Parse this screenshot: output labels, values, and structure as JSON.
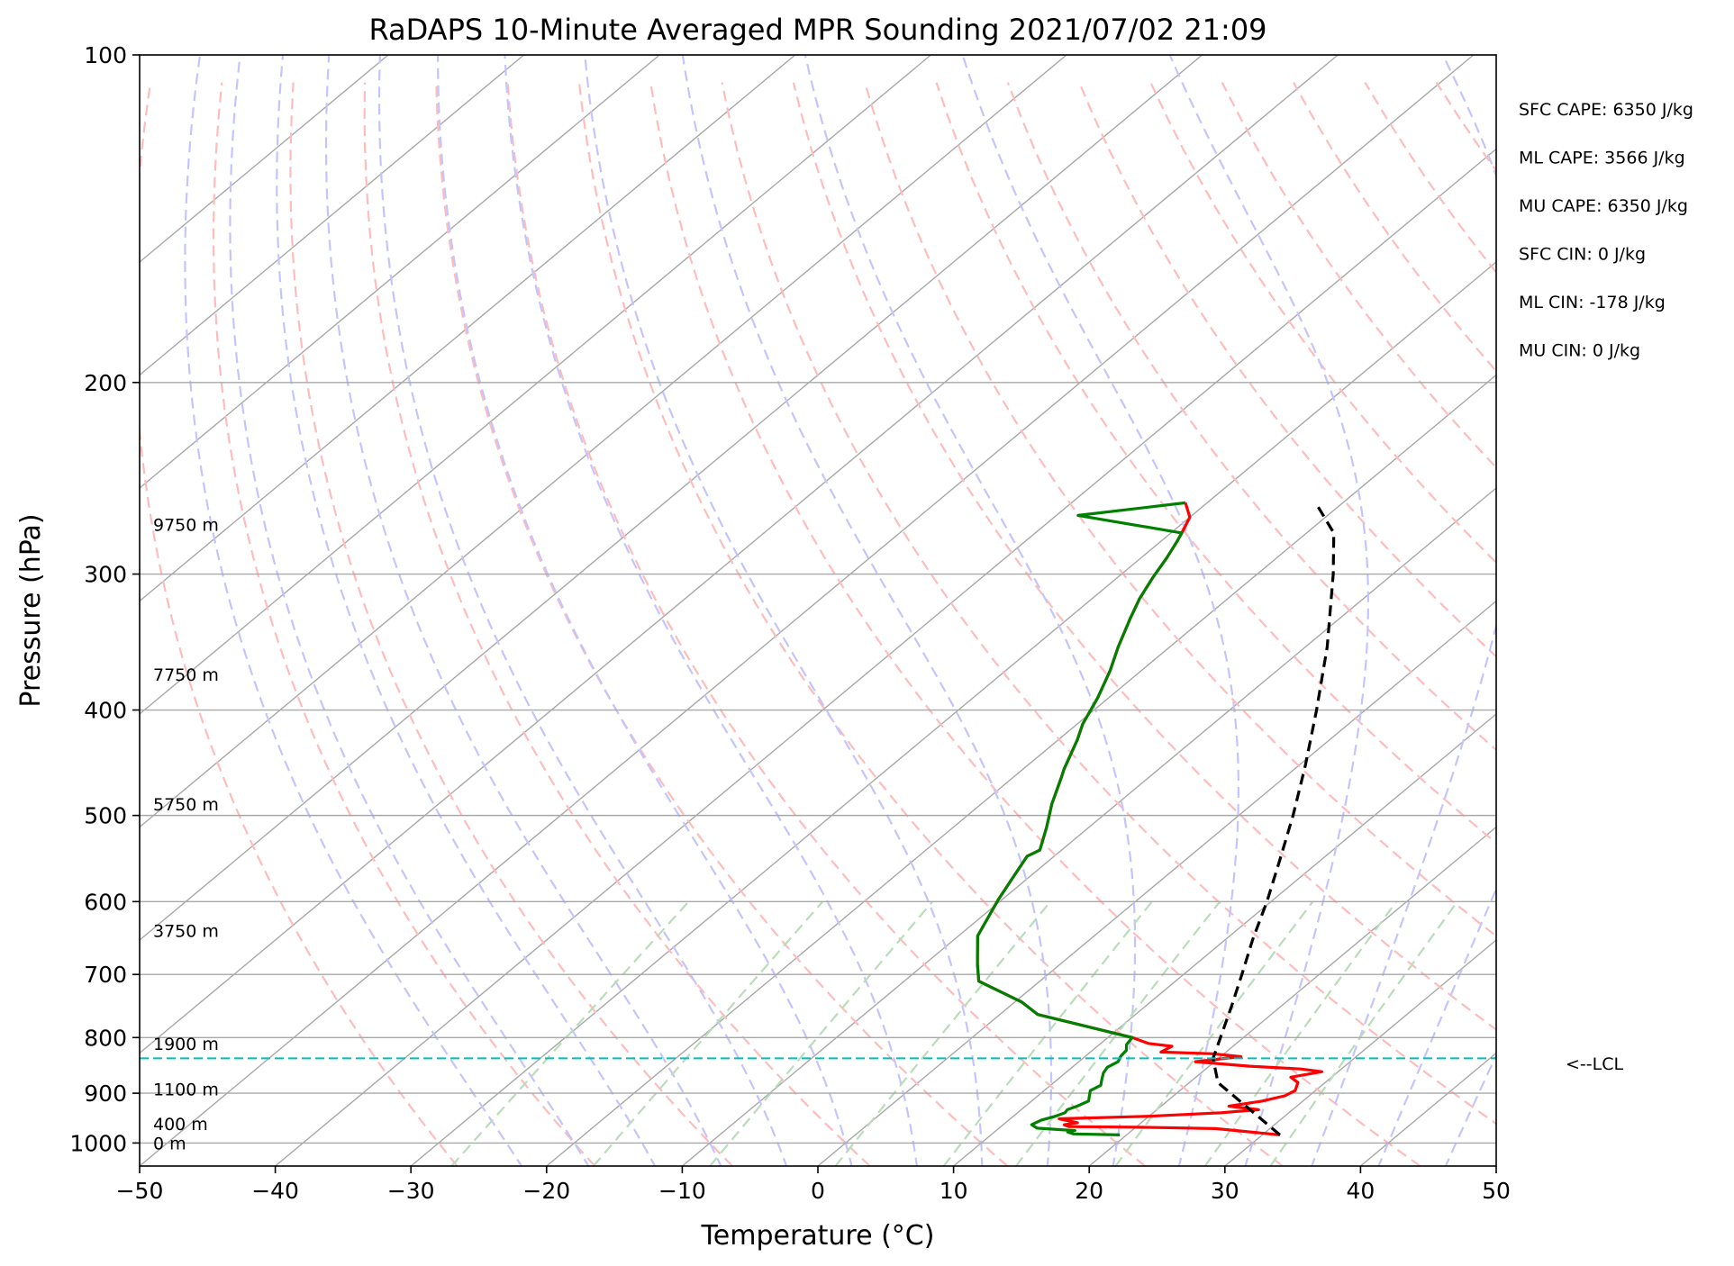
{
  "chart_data": {
    "type": "skew-t",
    "title": "RaDAPS 10-Minute Averaged MPR Sounding 2021/07/02 21:09",
    "xlabel": "Temperature (°C)",
    "ylabel": "Pressure (hPa)",
    "xlim": [
      -50,
      50
    ],
    "ylim": [
      1050,
      100
    ],
    "x_ticks": [
      "−50",
      "−40",
      "−30",
      "−20",
      "−10",
      "0",
      "10",
      "20",
      "30",
      "40",
      "50"
    ],
    "x_tick_values": [
      -50,
      -40,
      -30,
      -20,
      -10,
      0,
      10,
      20,
      30,
      40,
      50
    ],
    "y_ticks": [
      "100",
      "200",
      "300",
      "400",
      "500",
      "600",
      "700",
      "800",
      "900",
      "1000"
    ],
    "y_tick_values": [
      100,
      200,
      300,
      400,
      500,
      600,
      700,
      800,
      900,
      1000
    ],
    "y_scale": "log",
    "grid": true,
    "series": [
      {
        "role": "temperature",
        "color": "#ff0000",
        "points": [
          [
            31.3,
            983
          ],
          [
            26,
            970
          ],
          [
            20,
            967
          ],
          [
            15,
            966
          ],
          [
            14.5,
            962
          ],
          [
            15.3,
            958
          ],
          [
            13.6,
            950
          ],
          [
            20,
            945
          ],
          [
            25,
            938
          ],
          [
            27.5,
            932
          ],
          [
            25,
            925
          ],
          [
            27,
            915
          ],
          [
            28.2,
            905
          ],
          [
            28.5,
            895
          ],
          [
            28,
            880
          ],
          [
            27,
            870
          ],
          [
            28.8,
            860
          ],
          [
            27,
            855
          ],
          [
            23,
            850
          ],
          [
            18.6,
            842
          ],
          [
            21.5,
            833
          ],
          [
            19.2,
            828
          ],
          [
            15.2,
            825
          ],
          [
            15.5,
            815
          ],
          [
            13.5,
            810
          ],
          [
            11.8,
            800
          ],
          [
            2.8,
            762
          ],
          [
            0.5,
            742
          ],
          [
            -4.5,
            710
          ],
          [
            -6.1,
            685
          ],
          [
            -8.6,
            645
          ],
          [
            -10.3,
            597
          ],
          [
            -11.2,
            569
          ],
          [
            -12,
            545
          ],
          [
            -11.6,
            538
          ],
          [
            -13.1,
            513
          ],
          [
            -14.8,
            488
          ],
          [
            -16.4,
            462
          ],
          [
            -17,
            453
          ],
          [
            -18.6,
            426
          ],
          [
            -19.6,
            412
          ],
          [
            -20.8,
            390
          ],
          [
            -22.3,
            368
          ],
          [
            -23.8,
            350
          ],
          [
            -25.4,
            330
          ],
          [
            -26.5,
            316
          ],
          [
            -27.4,
            302
          ],
          [
            -28.1,
            290
          ],
          [
            -28.8,
            280
          ],
          [
            -29.2,
            275
          ],
          [
            -30,
            266
          ],
          [
            -31.6,
            258
          ]
        ]
      },
      {
        "role": "dewpoint",
        "color": "#008000",
        "points": [
          [
            19.5,
            983
          ],
          [
            16,
            981
          ],
          [
            15.4,
            977
          ],
          [
            15.8,
            974
          ],
          [
            12.8,
            969
          ],
          [
            12.1,
            962
          ],
          [
            12.4,
            953
          ],
          [
            13.1,
            945
          ],
          [
            13.5,
            938
          ],
          [
            13.4,
            932
          ],
          [
            13.8,
            925
          ],
          [
            14.2,
            915
          ],
          [
            13.8,
            905
          ],
          [
            13.4,
            895
          ],
          [
            13.7,
            885
          ],
          [
            13.3,
            875
          ],
          [
            12.8,
            862
          ],
          [
            12.6,
            852
          ],
          [
            12.9,
            842
          ],
          [
            12.6,
            832
          ],
          [
            12.5,
            822
          ],
          [
            12,
            812
          ],
          [
            11.8,
            800
          ],
          [
            2.8,
            762
          ],
          [
            0.5,
            742
          ],
          [
            -4.5,
            710
          ],
          [
            -6.1,
            685
          ],
          [
            -8.6,
            645
          ],
          [
            -10.3,
            597
          ],
          [
            -11.2,
            569
          ],
          [
            -12,
            545
          ],
          [
            -11.6,
            538
          ],
          [
            -13.1,
            513
          ],
          [
            -14.8,
            488
          ],
          [
            -16.4,
            462
          ],
          [
            -17,
            453
          ],
          [
            -18.6,
            426
          ],
          [
            -19.6,
            412
          ],
          [
            -20.8,
            390
          ],
          [
            -22.3,
            368
          ],
          [
            -23.8,
            350
          ],
          [
            -25.4,
            330
          ],
          [
            -26.5,
            316
          ],
          [
            -27.4,
            302
          ],
          [
            -28.1,
            290
          ],
          [
            -28.8,
            280
          ],
          [
            -29.2,
            275
          ],
          [
            -38.4,
            265
          ],
          [
            -31.6,
            258
          ]
        ]
      },
      {
        "role": "parcel",
        "color": "#000000",
        "points": [
          [
            31.3,
            983
          ],
          [
            26.7,
            930
          ],
          [
            22.1,
            880
          ],
          [
            19.6,
            836
          ],
          [
            18.3,
            800
          ],
          [
            16.4,
            750
          ],
          [
            14.3,
            700
          ],
          [
            12,
            650
          ],
          [
            9.7,
            600
          ],
          [
            7,
            550
          ],
          [
            4,
            500
          ],
          [
            0.5,
            450
          ],
          [
            -3.6,
            400
          ],
          [
            -8.4,
            350
          ],
          [
            -14.4,
            300
          ],
          [
            -18,
            275
          ],
          [
            -22,
            258
          ]
        ]
      }
    ],
    "lcl": {
      "pressure": 836,
      "label": "<--LCL",
      "color": "#00bfbf"
    },
    "height_labels": [
      {
        "text": "9750 m",
        "pressure": 270
      },
      {
        "text": "7750 m",
        "pressure": 371
      },
      {
        "text": "5750 m",
        "pressure": 488
      },
      {
        "text": "3750 m",
        "pressure": 638
      },
      {
        "text": "1900 m",
        "pressure": 810
      },
      {
        "text": "1100 m",
        "pressure": 892
      },
      {
        "text": "400 m",
        "pressure": 960
      },
      {
        "text": "0 m",
        "pressure": 1000
      }
    ],
    "stats": [
      "SFC CAPE: 6350 J/kg",
      "ML CAPE: 3566 J/kg",
      "MU CAPE: 6350 J/kg",
      "SFC CIN: 0 J/kg",
      "ML CIN: -178 J/kg",
      "MU CIN: 0 J/kg"
    ],
    "colors": {
      "isotherm": "#a8a8a8",
      "dry_adiabat": "#ffbcbc",
      "moist_adiabat": "#c4c4ff",
      "mixing_ratio": "#b8ddb8",
      "pressure_grid": "#a8a8a8"
    }
  }
}
